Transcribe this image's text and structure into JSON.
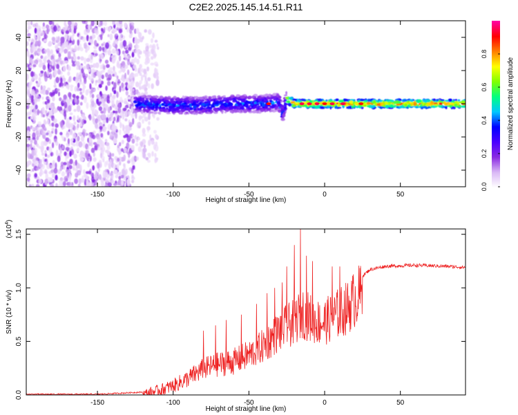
{
  "figure": {
    "title": "C2E2.2025.145.14.51.R11"
  },
  "chart_data": [
    {
      "type": "heatmap",
      "xlabel": "Height of straight line (km)",
      "ylabel": "Frequency (Hz)",
      "xlim": [
        -197,
        93
      ],
      "ylim": [
        -50,
        50
      ],
      "x_ticks": [
        -150,
        -100,
        -50,
        0,
        50
      ],
      "y_ticks": [
        -40,
        -20,
        0,
        20,
        40
      ],
      "colorbar": {
        "label": "Normalized spectral amplitude",
        "range": [
          0,
          1
        ],
        "ticks": [
          0.0,
          0.2,
          0.4,
          0.6,
          0.8
        ],
        "colormap": [
          "#ffffff",
          "#d9b8f5",
          "#8a2be2",
          "#4b00ff",
          "#0000ff",
          "#00c8ff",
          "#00ff80",
          "#80ff00",
          "#ffff00",
          "#ff8000",
          "#ff0000",
          "#ff00a0"
        ]
      },
      "regions": [
        {
          "x_range": [
            -197,
            -125
          ],
          "freq_range": [
            -50,
            50
          ],
          "amplitude": [
            0.0,
            0.2
          ],
          "pattern": "scattered noise"
        },
        {
          "x_range": [
            -125,
            -110
          ],
          "freq_range": [
            -35,
            45
          ],
          "amplitude": [
            0.0,
            0.1
          ],
          "pattern": "sparse fading noise"
        },
        {
          "x_range": [
            -125,
            -25
          ],
          "freq_range": [
            -5,
            5
          ],
          "amplitude": [
            0.1,
            0.45
          ],
          "pattern": "noisy band"
        },
        {
          "x_range": [
            -25,
            93
          ],
          "freq_range": [
            -3,
            3
          ],
          "amplitude": [
            0.3,
            0.95
          ],
          "pattern": "narrow steady band"
        }
      ],
      "band_centerline": [
        [
          -125,
          0
        ],
        [
          -100,
          -1
        ],
        [
          -80,
          -1
        ],
        [
          -60,
          0
        ],
        [
          -40,
          0
        ],
        [
          -30,
          1
        ],
        [
          -28,
          -6
        ],
        [
          -25,
          3
        ],
        [
          -20,
          0
        ],
        [
          0,
          0
        ],
        [
          50,
          0
        ],
        [
          93,
          0
        ]
      ],
      "hot_spots": [
        {
          "x": -37,
          "y": 0,
          "amplitude": 0.9
        },
        {
          "x": -15,
          "y": 0,
          "amplitude": 0.95
        },
        {
          "x": -10,
          "y": 0,
          "amplitude": 0.95
        },
        {
          "x": -5,
          "y": 0,
          "amplitude": 0.95
        },
        {
          "x": 0,
          "y": 0,
          "amplitude": 0.9
        },
        {
          "x": 5,
          "y": 0,
          "amplitude": 0.95
        },
        {
          "x": 12,
          "y": 0,
          "amplitude": 0.95
        },
        {
          "x": 24,
          "y": 0,
          "amplitude": 0.9
        }
      ]
    },
    {
      "type": "line",
      "xlabel": "Height of straight line (km)",
      "ylabel": "SNR (10 * v/v)",
      "y_multiplier": "(x10^4)",
      "xlim": [
        -197,
        93
      ],
      "ylim": [
        0,
        1.55
      ],
      "x_ticks": [
        -150,
        -100,
        -50,
        0,
        50
      ],
      "y_ticks": [
        0.0,
        0.5,
        1.0,
        1.5
      ],
      "series": [
        {
          "color": "#ee2222",
          "envelope": [
            [
              -197,
              0.01
            ],
            [
              -150,
              0.01
            ],
            [
              -120,
              0.03
            ],
            [
              -110,
              0.07
            ],
            [
              -100,
              0.12
            ],
            [
              -90,
              0.2
            ],
            [
              -80,
              0.3
            ],
            [
              -70,
              0.35
            ],
            [
              -60,
              0.38
            ],
            [
              -50,
              0.45
            ],
            [
              -40,
              0.55
            ],
            [
              -30,
              0.7
            ],
            [
              -20,
              0.8
            ],
            [
              -15,
              0.9
            ],
            [
              -10,
              0.85
            ],
            [
              -5,
              0.8
            ],
            [
              0,
              0.8
            ],
            [
              5,
              0.85
            ],
            [
              10,
              0.9
            ],
            [
              15,
              0.95
            ],
            [
              20,
              1.05
            ],
            [
              25,
              1.12
            ],
            [
              30,
              1.18
            ],
            [
              40,
              1.21
            ],
            [
              60,
              1.22
            ],
            [
              80,
              1.21
            ],
            [
              93,
              1.2
            ]
          ],
          "spikes": [
            [
              -16,
              1.55
            ],
            [
              -20,
              1.4
            ],
            [
              -12,
              1.3
            ],
            [
              -8,
              1.25
            ],
            [
              -25,
              1.2
            ],
            [
              -28,
              1.05
            ],
            [
              -33,
              1.0
            ],
            [
              -38,
              0.95
            ],
            [
              -45,
              0.85
            ],
            [
              -55,
              0.75
            ],
            [
              -65,
              0.7
            ],
            [
              -72,
              0.65
            ],
            [
              -80,
              0.6
            ],
            [
              5,
              1.2
            ],
            [
              10,
              1.2
            ]
          ]
        }
      ]
    }
  ]
}
